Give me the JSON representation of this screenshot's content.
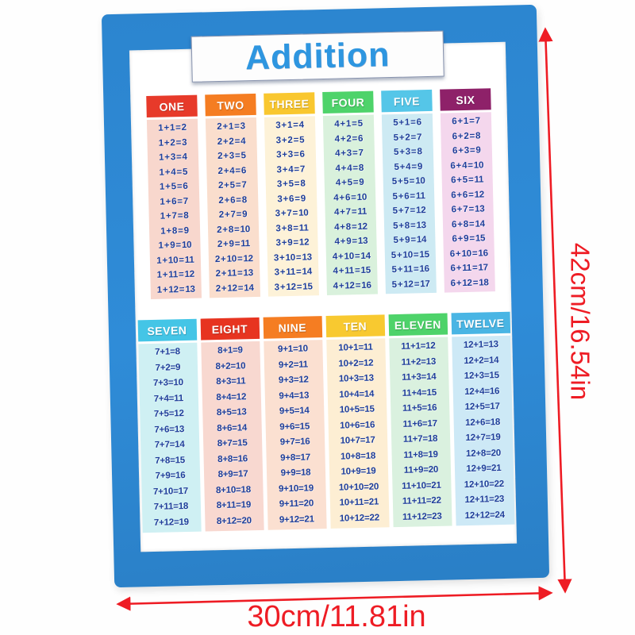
{
  "poster": {
    "title": "Addition",
    "frame_color": "#2c85cf",
    "title_color": "#2e96e0",
    "equation_color": "#1e3e9a",
    "tables": [
      {
        "columns": [
          {
            "label": "ONE",
            "header_color": "#e73a2a",
            "body_color": "#f8d7cd",
            "rows": [
              "1 + 1 = 2",
              "1 + 2 = 3",
              "1 + 3 = 4",
              "1 + 4 = 5",
              "1 + 5 = 6",
              "1 + 6 = 7",
              "1 + 7 = 8",
              "1 + 8 = 9",
              "1 + 9 = 10",
              "1 + 10 = 11",
              "1 + 11 = 12",
              "1 + 12 = 13"
            ]
          },
          {
            "label": "TWO",
            "header_color": "#f57d22",
            "body_color": "#fadecd",
            "rows": [
              "2 + 1 = 3",
              "2 + 2 = 4",
              "2 + 3 = 5",
              "2 + 4 = 6",
              "2 + 5 = 7",
              "2 + 6 = 8",
              "2 + 7 = 9",
              "2 + 8 = 10",
              "2 + 9 = 11",
              "2 + 10 = 12",
              "2 + 11 = 13",
              "2 + 12 = 14"
            ]
          },
          {
            "label": "THREE",
            "header_color": "#f9c72f",
            "body_color": "#fdf2d8",
            "rows": [
              "3 + 1 = 4",
              "3 + 2 = 5",
              "3 + 3 = 6",
              "3 + 4 = 7",
              "3 + 5 = 8",
              "3 + 6 = 9",
              "3 + 7 = 10",
              "3 + 8 = 11",
              "3 + 9 = 12",
              "3 + 10 = 13",
              "3 + 11 = 14",
              "3 + 12 = 15"
            ]
          },
          {
            "label": "FOUR",
            "header_color": "#4ed36a",
            "body_color": "#d9f1dc",
            "rows": [
              "4 + 1 = 5",
              "4 + 2 = 6",
              "4 + 3 = 7",
              "4 + 4 = 8",
              "4 + 5 = 9",
              "4 + 6 = 10",
              "4 + 7 = 11",
              "4 + 8 = 12",
              "4 + 9 = 13",
              "4 + 10 = 14",
              "4 + 11 = 15",
              "4 + 12 = 16"
            ]
          },
          {
            "label": "FIVE",
            "header_color": "#55c6e8",
            "body_color": "#cdeaf3",
            "rows": [
              "5 + 1 = 6",
              "5 + 2 = 7",
              "5 + 3 = 8",
              "5 + 4 = 9",
              "5 + 5 = 10",
              "5 + 6 = 11",
              "5 + 7 = 12",
              "5 + 8 = 13",
              "5 + 9 = 14",
              "5 + 10 = 15",
              "5 + 11 = 16",
              "5 + 12 = 17"
            ]
          },
          {
            "label": "SIX",
            "header_color": "#8e2169",
            "body_color": "#f4d7ed",
            "rows": [
              "6 + 1 = 7",
              "6 + 2 = 8",
              "6 + 3 = 9",
              "6 + 4 = 10",
              "6 + 5 = 11",
              "6 + 6 = 12",
              "6 + 7 = 13",
              "6 + 8 = 14",
              "6 + 9 = 15",
              "6 + 10 = 16",
              "6 + 11 = 17",
              "6 + 12 = 18"
            ]
          }
        ]
      },
      {
        "columns": [
          {
            "label": "SEVEN",
            "header_color": "#44c5e6",
            "body_color": "#cff0f3",
            "rows": [
              "7 + 1 = 8",
              "7 + 2 = 9",
              "7 + 3 = 10",
              "7 + 4 = 11",
              "7 + 5 = 12",
              "7 + 6 = 13",
              "7 + 7 = 14",
              "7 + 8 = 15",
              "7 + 9 = 16",
              "7 + 10 = 17",
              "7 + 11 = 18",
              "7 + 12 = 19"
            ]
          },
          {
            "label": "EIGHT",
            "header_color": "#e73420",
            "body_color": "#f8d8d0",
            "rows": [
              "8 + 1 = 9",
              "8 + 2 = 10",
              "8 + 3 = 11",
              "8 + 4 = 12",
              "8 + 5 = 13",
              "8 + 6 = 14",
              "8 + 7 = 15",
              "8 + 8 = 16",
              "8 + 9 = 17",
              "8 + 10 = 18",
              "8 + 11 = 19",
              "8 + 12 = 20"
            ]
          },
          {
            "label": "NINE",
            "header_color": "#f57d22",
            "body_color": "#fbe0d1",
            "rows": [
              "9 + 1 = 10",
              "9 + 2 = 11",
              "9 + 3 = 12",
              "9 + 4 = 13",
              "9 + 5 = 14",
              "9 + 6 = 15",
              "9 + 7 = 16",
              "9 + 8 = 17",
              "9 + 9 = 18",
              "9 + 10 = 19",
              "9 + 11 = 20",
              "9 + 12 = 21"
            ]
          },
          {
            "label": "TEN",
            "header_color": "#f8c930",
            "body_color": "#fdeed3",
            "rows": [
              "10 + 1 = 11",
              "10 + 2 = 12",
              "10 + 3 = 13",
              "10 + 4 = 14",
              "10 + 5 = 15",
              "10 + 6 = 16",
              "10 + 7 = 17",
              "10 + 8 = 18",
              "10 + 9 = 19",
              "10 + 10 = 20",
              "10 + 11 = 21",
              "10 + 12 = 22"
            ]
          },
          {
            "label": "ELEVEN",
            "header_color": "#4ed36a",
            "body_color": "#daf1df",
            "rows": [
              "11 + 1 = 12",
              "11 + 2 = 13",
              "11 + 3 = 14",
              "11 + 4 = 15",
              "11 + 5 = 16",
              "11 + 6 = 17",
              "11 + 7 = 18",
              "11 + 8 = 19",
              "11 + 9 = 20",
              "11 + 10 = 21",
              "11 + 11 = 22",
              "11 + 12 = 23"
            ]
          },
          {
            "label": "TWELVE",
            "header_color": "#49b5e4",
            "body_color": "#cde9f6",
            "rows": [
              "12 + 1 = 13",
              "12 + 2 = 14",
              "12 + 3 = 15",
              "12 + 4 = 16",
              "12 + 5 = 17",
              "12 + 6 = 18",
              "12 + 7 = 19",
              "12 + 8 = 20",
              "12 + 9 = 21",
              "12 + 10 = 22",
              "12 + 11 = 23",
              "12 + 12 = 24"
            ]
          }
        ]
      }
    ]
  },
  "dimensions": {
    "height_label": "42cm/16.54in",
    "width_label": "30cm/11.81in",
    "arrow_color": "#ee1c24"
  }
}
